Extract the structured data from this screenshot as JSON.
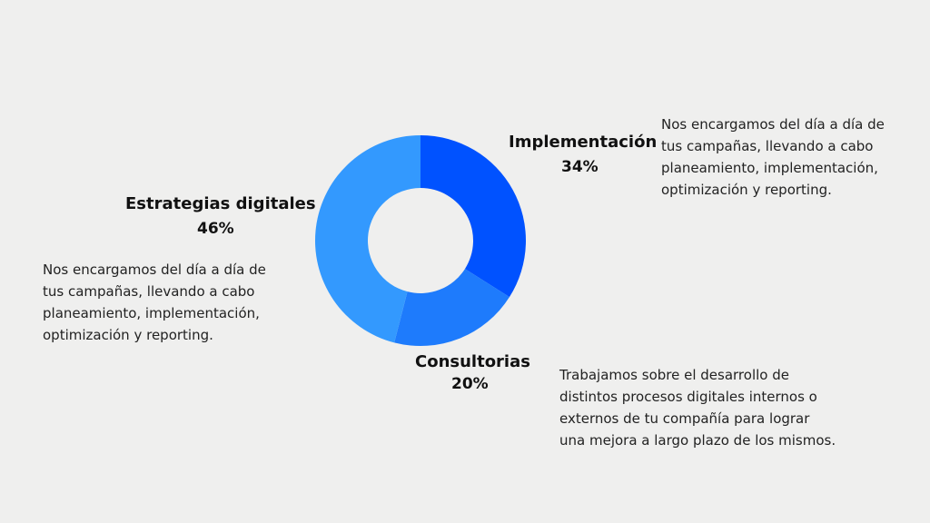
{
  "chart_data": {
    "type": "pie",
    "categories": [
      "Implementación",
      "Consultorias",
      "Estrategias digitales"
    ],
    "values": [
      34,
      20,
      46
    ],
    "value_labels": [
      "34%",
      "20%",
      "46%"
    ],
    "colors": [
      "#0052ff",
      "#1e7bfc",
      "#3399fe"
    ],
    "donut": true,
    "grid": false,
    "legend": "none"
  },
  "descriptions": {
    "estrategias": [
      "Nos encargamos del día a día de",
      "tus campañas, llevando a cabo",
      "planeamiento, implementación,",
      "optimización y reporting."
    ],
    "implementacion": [
      "Nos encargamos del día a día de",
      "tus campañas, llevando a cabo",
      "planeamiento, implementación,",
      "optimización y reporting."
    ],
    "consultorias": [
      "Trabajamos sobre el desarrollo de",
      "distintos procesos digitales internos o",
      "externos de tu compañía para lograr",
      "una mejora a largo plazo de los mismos."
    ]
  },
  "background_color": "#efefee"
}
